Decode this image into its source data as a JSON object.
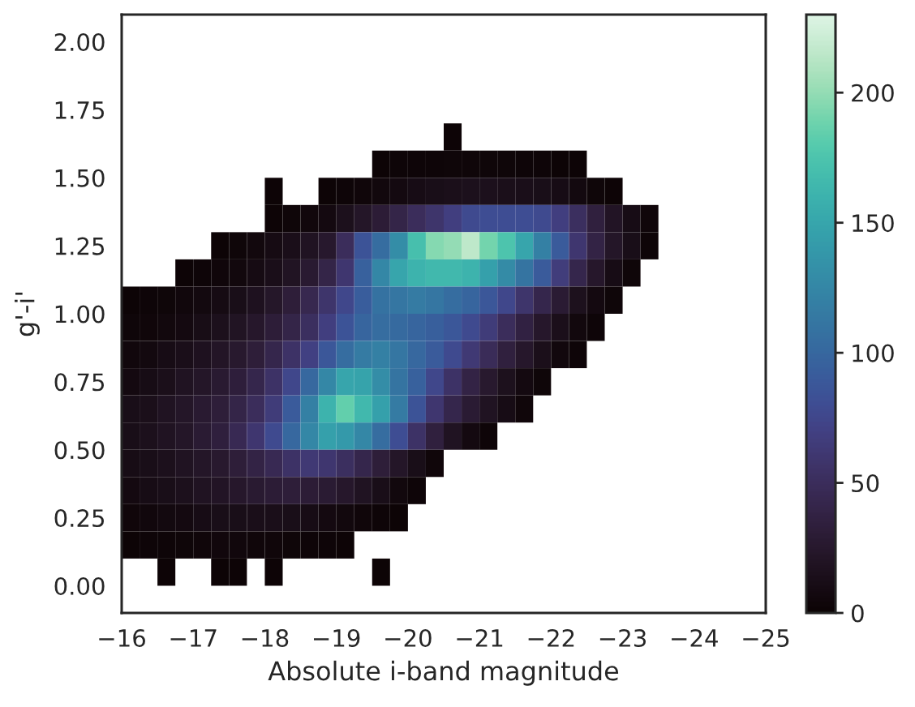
{
  "chart_data": {
    "type": "heatmap",
    "xlabel": "Absolute i-band magnitude",
    "ylabel": "g'-i'",
    "xlim": [
      -16,
      -25
    ],
    "ylim": [
      -0.1,
      2.1
    ],
    "xticks": [
      {
        "value": -16,
        "label": "−16"
      },
      {
        "value": -17,
        "label": "−17"
      },
      {
        "value": -18,
        "label": "−18"
      },
      {
        "value": -19,
        "label": "−19"
      },
      {
        "value": -20,
        "label": "−20"
      },
      {
        "value": -21,
        "label": "−21"
      },
      {
        "value": -22,
        "label": "−22"
      },
      {
        "value": -23,
        "label": "−23"
      },
      {
        "value": -24,
        "label": "−24"
      },
      {
        "value": -25,
        "label": "−25"
      }
    ],
    "yticks": [
      {
        "value": 0,
        "label": "0.00"
      },
      {
        "value": 0.25,
        "label": "0.25"
      },
      {
        "value": 0.5,
        "label": "0.50"
      },
      {
        "value": 0.75,
        "label": "0.75"
      },
      {
        "value": 1,
        "label": "1.00"
      },
      {
        "value": 1.25,
        "label": "1.25"
      },
      {
        "value": 1.5,
        "label": "1.50"
      },
      {
        "value": 1.75,
        "label": "1.75"
      },
      {
        "value": 2,
        "label": "2.00"
      }
    ],
    "clim": [
      0,
      230
    ],
    "cticks": [
      0,
      50,
      100,
      150,
      200
    ],
    "x": [
      -16.125,
      -16.375,
      -16.625,
      -16.875,
      -17.125,
      -17.375,
      -17.625,
      -17.875,
      -18.125,
      -18.375,
      -18.625,
      -18.875,
      -19.125,
      -19.375,
      -19.625,
      -19.875,
      -20.125,
      -20.375,
      -20.625,
      -20.875,
      -21.125,
      -21.375,
      -21.625,
      -21.875,
      -22.125,
      -22.375,
      -22.625,
      -22.875,
      -23.125,
      -23.375
    ],
    "y": [
      1.65,
      1.55,
      1.45,
      1.35,
      1.25,
      1.15,
      1.05,
      0.95,
      0.85,
      0.75,
      0.65,
      0.55,
      0.45,
      0.35,
      0.25,
      0.15,
      0.05
    ],
    "cells": [
      [
        null,
        null,
        null,
        null,
        null,
        null,
        null,
        null,
        null,
        null,
        null,
        null,
        null,
        null,
        null,
        null,
        null,
        null,
        1,
        null,
        null,
        null,
        null,
        null,
        null,
        null,
        null,
        null,
        null,
        null
      ],
      [
        null,
        null,
        null,
        null,
        null,
        null,
        null,
        null,
        null,
        null,
        null,
        null,
        null,
        null,
        1,
        2,
        2,
        2,
        3,
        3,
        3,
        3,
        2,
        2,
        1,
        1,
        null,
        null,
        null,
        null
      ],
      [
        null,
        null,
        null,
        null,
        null,
        null,
        null,
        null,
        1,
        null,
        null,
        1,
        2,
        4,
        6,
        8,
        10,
        12,
        14,
        15,
        15,
        14,
        13,
        12,
        10,
        7,
        3,
        1,
        null,
        null
      ],
      [
        null,
        null,
        null,
        null,
        null,
        null,
        null,
        null,
        1,
        3,
        5,
        8,
        15,
        22,
        30,
        40,
        50,
        58,
        68,
        78,
        80,
        80,
        80,
        78,
        68,
        52,
        35,
        20,
        10,
        4
      ],
      [
        null,
        null,
        null,
        null,
        null,
        1,
        3,
        6,
        9,
        13,
        18,
        25,
        50,
        85,
        105,
        130,
        170,
        195,
        200,
        215,
        190,
        175,
        150,
        120,
        90,
        60,
        38,
        22,
        12,
        2
      ],
      [
        null,
        null,
        null,
        1,
        2,
        4,
        6,
        9,
        13,
        19,
        27,
        40,
        60,
        95,
        125,
        150,
        160,
        165,
        165,
        160,
        145,
        128,
        110,
        90,
        66,
        42,
        24,
        10,
        3,
        null
      ],
      [
        1,
        2,
        3,
        5,
        7,
        9,
        12,
        17,
        23,
        32,
        44,
        58,
        75,
        92,
        108,
        112,
        115,
        112,
        105,
        98,
        88,
        75,
        58,
        42,
        28,
        16,
        8,
        3,
        null,
        null
      ],
      [
        3,
        4,
        6,
        8,
        11,
        15,
        19,
        24,
        31,
        40,
        52,
        68,
        85,
        98,
        105,
        102,
        98,
        94,
        88,
        78,
        65,
        50,
        36,
        24,
        14,
        6,
        2,
        null,
        null,
        null
      ],
      [
        5,
        7,
        10,
        13,
        17,
        21,
        26,
        32,
        42,
        55,
        70,
        88,
        105,
        115,
        120,
        112,
        100,
        90,
        78,
        62,
        48,
        35,
        24,
        14,
        6,
        2,
        null,
        null,
        null,
        null
      ],
      [
        8,
        10,
        14,
        18,
        22,
        27,
        33,
        42,
        55,
        75,
        100,
        125,
        150,
        148,
        130,
        110,
        95,
        75,
        55,
        38,
        26,
        16,
        8,
        3,
        null,
        null,
        null,
        null,
        null,
        null
      ],
      [
        12,
        14,
        18,
        22,
        27,
        32,
        40,
        50,
        65,
        90,
        120,
        160,
        185,
        165,
        145,
        115,
        85,
        60,
        42,
        28,
        18,
        10,
        4,
        null,
        null,
        null,
        null,
        null,
        null,
        null
      ],
      [
        12,
        15,
        18,
        22,
        28,
        34,
        45,
        60,
        78,
        100,
        125,
        145,
        140,
        125,
        105,
        80,
        55,
        35,
        18,
        8,
        2,
        null,
        null,
        null,
        null,
        null,
        null,
        null,
        null,
        null
      ],
      [
        10,
        12,
        15,
        18,
        22,
        26,
        32,
        38,
        45,
        55,
        62,
        60,
        52,
        42,
        32,
        22,
        12,
        4,
        null,
        null,
        null,
        null,
        null,
        null,
        null,
        null,
        null,
        null,
        null,
        null
      ],
      [
        8,
        10,
        12,
        15,
        18,
        20,
        24,
        27,
        30,
        32,
        30,
        28,
        24,
        18,
        12,
        6,
        2,
        null,
        null,
        null,
        null,
        null,
        null,
        null,
        null,
        null,
        null,
        null,
        null,
        null
      ],
      [
        4,
        5,
        7,
        8,
        10,
        12,
        12,
        13,
        13,
        12,
        10,
        8,
        6,
        4,
        2,
        1,
        null,
        null,
        null,
        null,
        null,
        null,
        null,
        null,
        null,
        null,
        null,
        null,
        null,
        null
      ],
      [
        1,
        2,
        2,
        3,
        4,
        5,
        5,
        4,
        4,
        3,
        2,
        2,
        1,
        null,
        null,
        null,
        null,
        null,
        null,
        null,
        null,
        null,
        null,
        null,
        null,
        null,
        null,
        null,
        null,
        null
      ],
      [
        null,
        null,
        1,
        null,
        null,
        1,
        1,
        null,
        1,
        null,
        null,
        null,
        null,
        null,
        1,
        null,
        null,
        null,
        null,
        null,
        null,
        null,
        null,
        null,
        null,
        null,
        null,
        null,
        null,
        null
      ]
    ]
  }
}
